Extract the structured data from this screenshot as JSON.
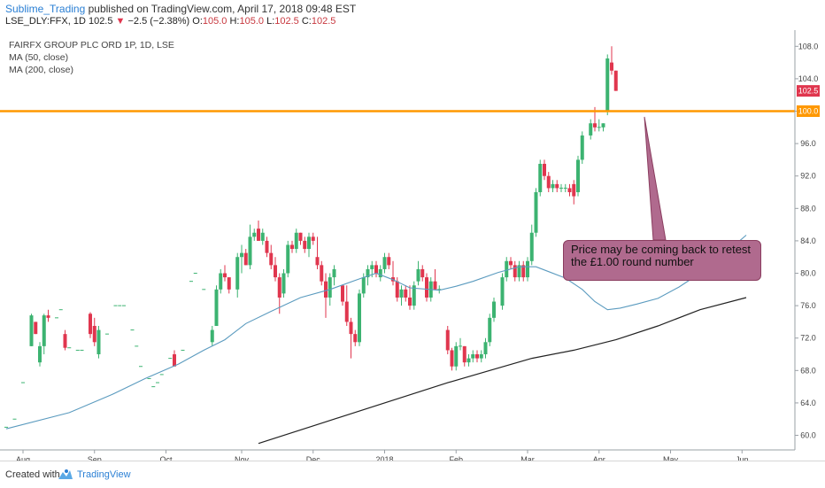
{
  "header": {
    "author": "Sublime_Trading",
    "published": " published on TradingView.com, April 17, 2018 09:48 EST",
    "symbol": "LSE_DLY:FFX, 1D ",
    "last": "102.5",
    "change": "−2.5 (−2.38%)",
    "o_label": " O:",
    "o_val": "105.0",
    "h_label": " H:",
    "h_val": "105.0",
    "l_label": " L:",
    "l_val": "102.5",
    "c_label": " C:",
    "c_val": "102.5"
  },
  "legend": {
    "title": "FAIRFX GROUP PLC ORD 1P, 1D, LSE",
    "ma50": "MA (50, close)",
    "ma200": "MA (200, close)"
  },
  "annotation": "Price may be coming back to retest the £1.00 round number",
  "footer": {
    "created": "Created with",
    "brand": "TradingView"
  },
  "colors": {
    "up": "#3cb371",
    "down": "#e0364e",
    "level": "#ff9800",
    "ma50": "#5b9bbf",
    "ma200": "#222222",
    "annotation": "#b06a8e"
  },
  "chart_data": {
    "type": "candlestick",
    "x_ticks": [
      "Aug",
      "Sep",
      "Oct",
      "Nov",
      "Dec",
      "2018",
      "Feb",
      "Mar",
      "Apr",
      "May",
      "Jun"
    ],
    "y_ticks": [
      "60.0",
      "64.0",
      "68.0",
      "72.0",
      "76.0",
      "80.0",
      "84.0",
      "88.0",
      "92.0",
      "96.0",
      "100.0",
      "104.0",
      "108.0"
    ],
    "ylim": [
      58.2,
      110.0
    ],
    "level": {
      "value": 100.0,
      "label": "100.0"
    },
    "last_price": {
      "value": 102.5,
      "label": "102.5"
    },
    "ma50": [
      [
        0,
        60.8
      ],
      [
        15,
        62.8
      ],
      [
        25,
        65.0
      ],
      [
        33,
        67.0
      ],
      [
        41,
        68.8
      ],
      [
        47,
        70.5
      ],
      [
        52,
        71.8
      ],
      [
        57,
        73.8
      ],
      [
        63,
        75.3
      ],
      [
        70,
        77.0
      ],
      [
        77,
        78.0
      ],
      [
        84,
        79.3
      ],
      [
        88,
        80.0
      ],
      [
        92,
        79.2
      ],
      [
        96,
        78.2
      ],
      [
        103,
        77.9
      ],
      [
        107,
        78.4
      ],
      [
        111,
        79.0
      ],
      [
        117,
        80.1
      ],
      [
        122,
        80.8
      ],
      [
        126,
        80.8
      ],
      [
        129,
        80.2
      ],
      [
        133,
        79.4
      ],
      [
        137,
        78.0
      ],
      [
        140,
        76.5
      ],
      [
        143,
        75.5
      ],
      [
        146,
        75.7
      ],
      [
        150,
        76.2
      ],
      [
        155,
        76.9
      ],
      [
        160,
        78.3
      ],
      [
        165,
        80.0
      ],
      [
        170,
        82.0
      ],
      [
        174,
        83.8
      ],
      [
        176,
        84.7
      ]
    ],
    "ma200": [
      [
        60,
        59.0
      ],
      [
        75,
        61.5
      ],
      [
        90,
        64.0
      ],
      [
        105,
        66.5
      ],
      [
        115,
        68.0
      ],
      [
        125,
        69.5
      ],
      [
        135,
        70.5
      ],
      [
        145,
        71.8
      ],
      [
        155,
        73.5
      ],
      [
        165,
        75.5
      ],
      [
        176,
        77.0
      ]
    ],
    "candles": [
      [
        0,
        61.0,
        61.0,
        61.0,
        61.0
      ],
      [
        2,
        62.0,
        62.0,
        62.0,
        62.0
      ],
      [
        4,
        66.5,
        66.5,
        66.5,
        66.5
      ],
      [
        6,
        71.0,
        75.0,
        71.0,
        74.8
      ],
      [
        7,
        74.0,
        74.0,
        72.5,
        72.5
      ],
      [
        8,
        69.0,
        71.5,
        68.5,
        71.0
      ],
      [
        9,
        71.0,
        75.0,
        70.0,
        74.8
      ],
      [
        10,
        74.8,
        75.5,
        74.0,
        74.5
      ],
      [
        12,
        74.5,
        74.5,
        74.5,
        74.5
      ],
      [
        13,
        75.5,
        75.5,
        75.5,
        75.5
      ],
      [
        14,
        72.5,
        73.0,
        70.5,
        70.8
      ],
      [
        15,
        70.8,
        70.8,
        70.8,
        70.8
      ],
      [
        17,
        70.5,
        70.5,
        70.5,
        70.5
      ],
      [
        18,
        70.5,
        70.5,
        70.5,
        70.5
      ],
      [
        20,
        75.0,
        75.2,
        72.0,
        72.5
      ],
      [
        21,
        73.5,
        74.5,
        71.0,
        71.5
      ],
      [
        22,
        70.0,
        73.5,
        69.5,
        73.0
      ],
      [
        24,
        72.5,
        72.5,
        72.5,
        72.5
      ],
      [
        26,
        76.0,
        76.0,
        76.0,
        76.0
      ],
      [
        27,
        76.0,
        76.0,
        76.0,
        76.0
      ],
      [
        28,
        76.0,
        76.0,
        76.0,
        76.0
      ],
      [
        30,
        73.0,
        73.0,
        73.0,
        73.0
      ],
      [
        31,
        71.0,
        71.0,
        71.0,
        71.0
      ],
      [
        32,
        68.5,
        68.5,
        68.5,
        68.5
      ],
      [
        34,
        67.0,
        67.0,
        67.0,
        67.0
      ],
      [
        35,
        66.0,
        66.0,
        66.0,
        66.0
      ],
      [
        36,
        66.5,
        66.5,
        66.5,
        66.5
      ],
      [
        37,
        67.5,
        67.5,
        67.5,
        67.5
      ],
      [
        39,
        69.5,
        69.5,
        69.5,
        69.5
      ],
      [
        40,
        70.0,
        70.5,
        68.5,
        68.5
      ],
      [
        42,
        70.5,
        70.5,
        70.5,
        70.5
      ],
      [
        44,
        79.0,
        79.0,
        79.0,
        79.0
      ],
      [
        45,
        80.0,
        80.0,
        80.0,
        80.0
      ],
      [
        47,
        78.0,
        78.0,
        78.0,
        78.0
      ],
      [
        49,
        71.5,
        73.5,
        71.0,
        73.0
      ],
      [
        50,
        73.5,
        78.5,
        73.5,
        78.0
      ],
      [
        51,
        78.0,
        80.5,
        77.5,
        80.0
      ],
      [
        52,
        80.0,
        81.0,
        79.0,
        79.5
      ],
      [
        53,
        79.5,
        79.5,
        77.5,
        78.0
      ],
      [
        55,
        78.0,
        82.5,
        77.0,
        82.0
      ],
      [
        56,
        82.0,
        83.5,
        80.0,
        82.5
      ],
      [
        57,
        82.5,
        83.0,
        81.0,
        81.0
      ],
      [
        58,
        81.0,
        86.0,
        80.5,
        84.5
      ],
      [
        59,
        84.5,
        85.5,
        84.0,
        85.0
      ],
      [
        60,
        85.5,
        86.5,
        84.0,
        84.0
      ],
      [
        61,
        84.0,
        85.5,
        83.5,
        85.0
      ],
      [
        62,
        84.0,
        84.5,
        82.0,
        82.5
      ],
      [
        63,
        82.5,
        83.5,
        80.5,
        81.0
      ],
      [
        64,
        81.0,
        82.0,
        79.0,
        79.5
      ],
      [
        65,
        79.5,
        80.0,
        75.0,
        77.0
      ],
      [
        66,
        77.5,
        80.5,
        77.0,
        80.0
      ],
      [
        67,
        80.0,
        84.0,
        79.5,
        83.5
      ],
      [
        68,
        83.5,
        84.0,
        82.5,
        83.0
      ],
      [
        69,
        83.0,
        85.5,
        82.5,
        85.0
      ],
      [
        70,
        85.0,
        85.0,
        83.5,
        84.0
      ],
      [
        71,
        84.0,
        84.5,
        82.5,
        83.0
      ],
      [
        72,
        83.0,
        85.0,
        82.0,
        84.5
      ],
      [
        73,
        84.5,
        85.0,
        83.5,
        84.0
      ],
      [
        74,
        82.0,
        84.5,
        80.5,
        81.0
      ],
      [
        75,
        81.0,
        81.5,
        78.5,
        79.0
      ],
      [
        76,
        79.0,
        80.0,
        74.5,
        77.0
      ],
      [
        77,
        77.0,
        80.0,
        76.0,
        79.5
      ],
      [
        78,
        79.5,
        81.0,
        78.5,
        80.5
      ],
      [
        80,
        78.5,
        78.5,
        76.0,
        76.5
      ],
      [
        81,
        76.5,
        78.5,
        73.5,
        74.0
      ],
      [
        82,
        74.0,
        74.5,
        69.5,
        72.5
      ],
      [
        83,
        72.5,
        73.0,
        71.0,
        71.5
      ],
      [
        84,
        71.5,
        78.0,
        71.0,
        77.5
      ],
      [
        85,
        77.5,
        80.0,
        77.0,
        79.5
      ],
      [
        86,
        79.5,
        81.0,
        78.5,
        80.5
      ],
      [
        87,
        80.5,
        81.5,
        79.5,
        81.0
      ],
      [
        88,
        81.0,
        81.5,
        79.5,
        80.0
      ],
      [
        89,
        79.5,
        81.0,
        79.0,
        80.5
      ],
      [
        90,
        80.5,
        82.5,
        80.0,
        82.0
      ],
      [
        91,
        82.0,
        82.5,
        80.5,
        81.0
      ],
      [
        92,
        79.5,
        81.5,
        78.5,
        79.0
      ],
      [
        93,
        79.0,
        79.5,
        76.5,
        77.0
      ],
      [
        94,
        77.0,
        78.5,
        76.0,
        78.0
      ],
      [
        95,
        78.0,
        78.5,
        76.5,
        77.0
      ],
      [
        96,
        77.0,
        78.5,
        75.5,
        76.0
      ],
      [
        97,
        76.0,
        79.0,
        75.5,
        78.5
      ],
      [
        98,
        79.0,
        81.5,
        78.5,
        80.5
      ],
      [
        99,
        80.5,
        81.0,
        79.0,
        79.5
      ],
      [
        100,
        79.5,
        80.0,
        76.5,
        77.0
      ],
      [
        101,
        77.0,
        79.5,
        76.5,
        79.0
      ],
      [
        102,
        79.0,
        80.5,
        78.0,
        78.0
      ],
      [
        103,
        78.0,
        78.5,
        77.5,
        78.0
      ],
      [
        105,
        73.0,
        73.5,
        70.0,
        70.5
      ],
      [
        106,
        70.5,
        70.8,
        68.0,
        68.5
      ],
      [
        107,
        68.5,
        71.5,
        68.0,
        71.0
      ],
      [
        108,
        71.0,
        72.0,
        70.5,
        71.0
      ],
      [
        109,
        71.0,
        71.0,
        68.5,
        69.0
      ],
      [
        110,
        69.0,
        70.0,
        68.5,
        69.5
      ],
      [
        111,
        69.5,
        70.5,
        69.0,
        70.0
      ],
      [
        112,
        70.0,
        70.5,
        69.0,
        69.5
      ],
      [
        113,
        69.5,
        70.5,
        69.0,
        70.0
      ],
      [
        114,
        70.0,
        72.0,
        69.5,
        71.5
      ],
      [
        115,
        71.5,
        75.0,
        71.0,
        74.5
      ],
      [
        116,
        74.5,
        77.0,
        74.0,
        76.5
      ],
      [
        118,
        76.0,
        80.0,
        75.5,
        79.5
      ],
      [
        119,
        79.5,
        82.0,
        79.0,
        81.5
      ],
      [
        120,
        81.5,
        82.0,
        80.5,
        81.0
      ],
      [
        121,
        81.0,
        81.5,
        79.0,
        79.5
      ],
      [
        122,
        79.5,
        81.5,
        79.0,
        81.0
      ],
      [
        123,
        81.0,
        81.5,
        79.0,
        79.5
      ],
      [
        124,
        79.5,
        82.0,
        79.0,
        81.5
      ],
      [
        125,
        81.5,
        86.0,
        81.0,
        85.0
      ],
      [
        126,
        85.0,
        90.5,
        84.5,
        90.0
      ],
      [
        127,
        90.0,
        94.0,
        89.5,
        93.5
      ],
      [
        128,
        93.5,
        94.0,
        91.5,
        92.0
      ],
      [
        129,
        92.0,
        92.5,
        90.0,
        90.5
      ],
      [
        130,
        90.5,
        91.5,
        90.0,
        91.0
      ],
      [
        131,
        91.0,
        91.5,
        90.0,
        90.5
      ],
      [
        132,
        90.5,
        91.0,
        90.0,
        90.5
      ],
      [
        133,
        90.5,
        91.0,
        90.0,
        90.5
      ],
      [
        134,
        90.5,
        91.0,
        89.5,
        90.0
      ],
      [
        135,
        91.0,
        91.5,
        88.5,
        89.5
      ],
      [
        136,
        90.0,
        94.5,
        89.5,
        94.0
      ],
      [
        137,
        94.0,
        97.5,
        93.5,
        97.0
      ],
      [
        139,
        97.0,
        99.0,
        96.5,
        98.5
      ],
      [
        140,
        98.5,
        100.5,
        97.5,
        98.0
      ],
      [
        141,
        98.0,
        99.0,
        97.5,
        98.0
      ],
      [
        142,
        98.0,
        98.5,
        97.5,
        98.5
      ],
      [
        143,
        100.0,
        107.0,
        99.5,
        106.5
      ],
      [
        144,
        106.0,
        108.0,
        104.5,
        105.0
      ],
      [
        145,
        105.0,
        105.0,
        102.5,
        102.5
      ]
    ]
  }
}
